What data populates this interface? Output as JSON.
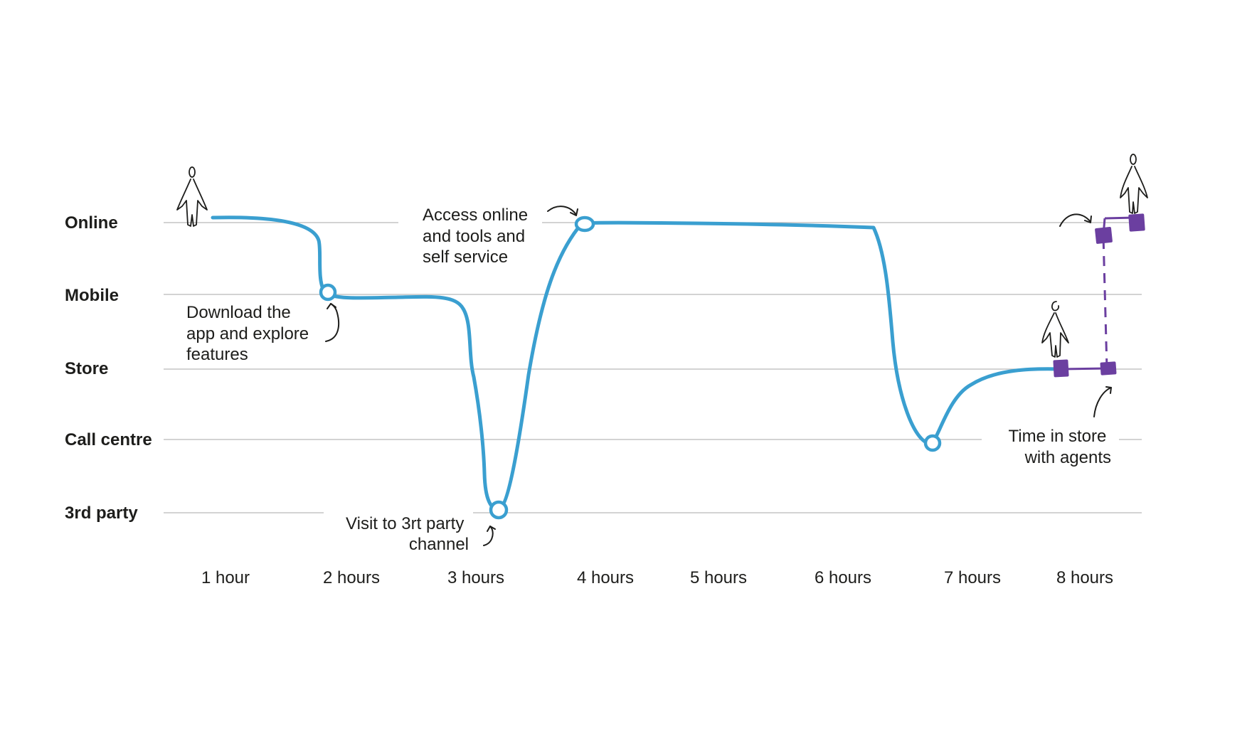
{
  "colors": {
    "journey": "#3a9fd0",
    "agent": "#6b3fa0",
    "gridline": "#b9b9b9",
    "text": "#1d1d1b"
  },
  "channels": [
    {
      "id": "online",
      "label": "Online"
    },
    {
      "id": "mobile",
      "label": "Mobile"
    },
    {
      "id": "store",
      "label": "Store"
    },
    {
      "id": "call-centre",
      "label": "Call centre"
    },
    {
      "id": "3rd-party",
      "label": "3rd party"
    }
  ],
  "timeline": [
    {
      "label": "1 hour"
    },
    {
      "label": "2 hours"
    },
    {
      "label": "3 hours"
    },
    {
      "label": "4 hours"
    },
    {
      "label": "5 hours"
    },
    {
      "label": "6 hours"
    },
    {
      "label": "7 hours"
    },
    {
      "label": "8 hours"
    }
  ],
  "annotations": {
    "download": [
      "Download the",
      "app and explore",
      "features"
    ],
    "visit": [
      "Visit to 3rt party",
      "channel"
    ],
    "access": [
      "Access online",
      "and tools and",
      "self service"
    ],
    "time_in_store": [
      "Time in store",
      "with agents"
    ]
  },
  "icons": [
    "person-icon",
    "person-icon",
    "person-icon",
    "arrow-icon"
  ]
}
